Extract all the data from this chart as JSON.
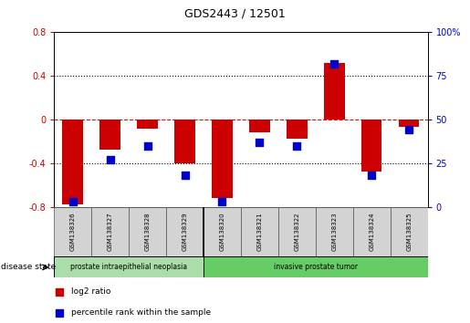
{
  "title": "GDS2443 / 12501",
  "samples": [
    "GSM138326",
    "GSM138327",
    "GSM138328",
    "GSM138329",
    "GSM138320",
    "GSM138321",
    "GSM138322",
    "GSM138323",
    "GSM138324",
    "GSM138325"
  ],
  "log2_ratio": [
    -0.78,
    -0.28,
    -0.08,
    -0.4,
    -0.72,
    -0.12,
    -0.18,
    0.52,
    -0.48,
    -0.07
  ],
  "percentile_rank": [
    3,
    27,
    35,
    18,
    3,
    37,
    35,
    82,
    18,
    44
  ],
  "groups": [
    {
      "label": "prostate intraepithelial neoplasia",
      "start": 0,
      "end": 4
    },
    {
      "label": "invasive prostate tumor",
      "start": 4,
      "end": 10
    }
  ],
  "ylim_left": [
    -0.8,
    0.8
  ],
  "ylim_right": [
    0,
    100
  ],
  "yticks_left": [
    -0.8,
    -0.4,
    0.0,
    0.4,
    0.8
  ],
  "yticks_right": [
    0,
    25,
    50,
    75,
    100
  ],
  "ytick_labels_left": [
    "-0.8",
    "-0.4",
    "0",
    "0.4",
    "0.8"
  ],
  "ytick_labels_right": [
    "0",
    "25",
    "50",
    "75",
    "100%"
  ],
  "hlines": [
    -0.4,
    0.0,
    0.4
  ],
  "hline_styles": [
    "dotted",
    "dashed",
    "dotted"
  ],
  "hline_colors": [
    "black",
    "red",
    "black"
  ],
  "bar_color": "#cc0000",
  "dot_color": "#0000cc",
  "bar_width": 0.55,
  "dot_size": 35,
  "left_ycolor": "#cc0000",
  "right_ycolor": "#0000cc",
  "legend_items": [
    {
      "label": "log2 ratio",
      "color": "#cc0000"
    },
    {
      "label": "percentile rank within the sample",
      "color": "#0000cc"
    }
  ],
  "disease_state_label": "disease state",
  "group1_color": "#aaddaa",
  "group2_color": "#66cc66",
  "sample_box_color": "#d3d3d3"
}
